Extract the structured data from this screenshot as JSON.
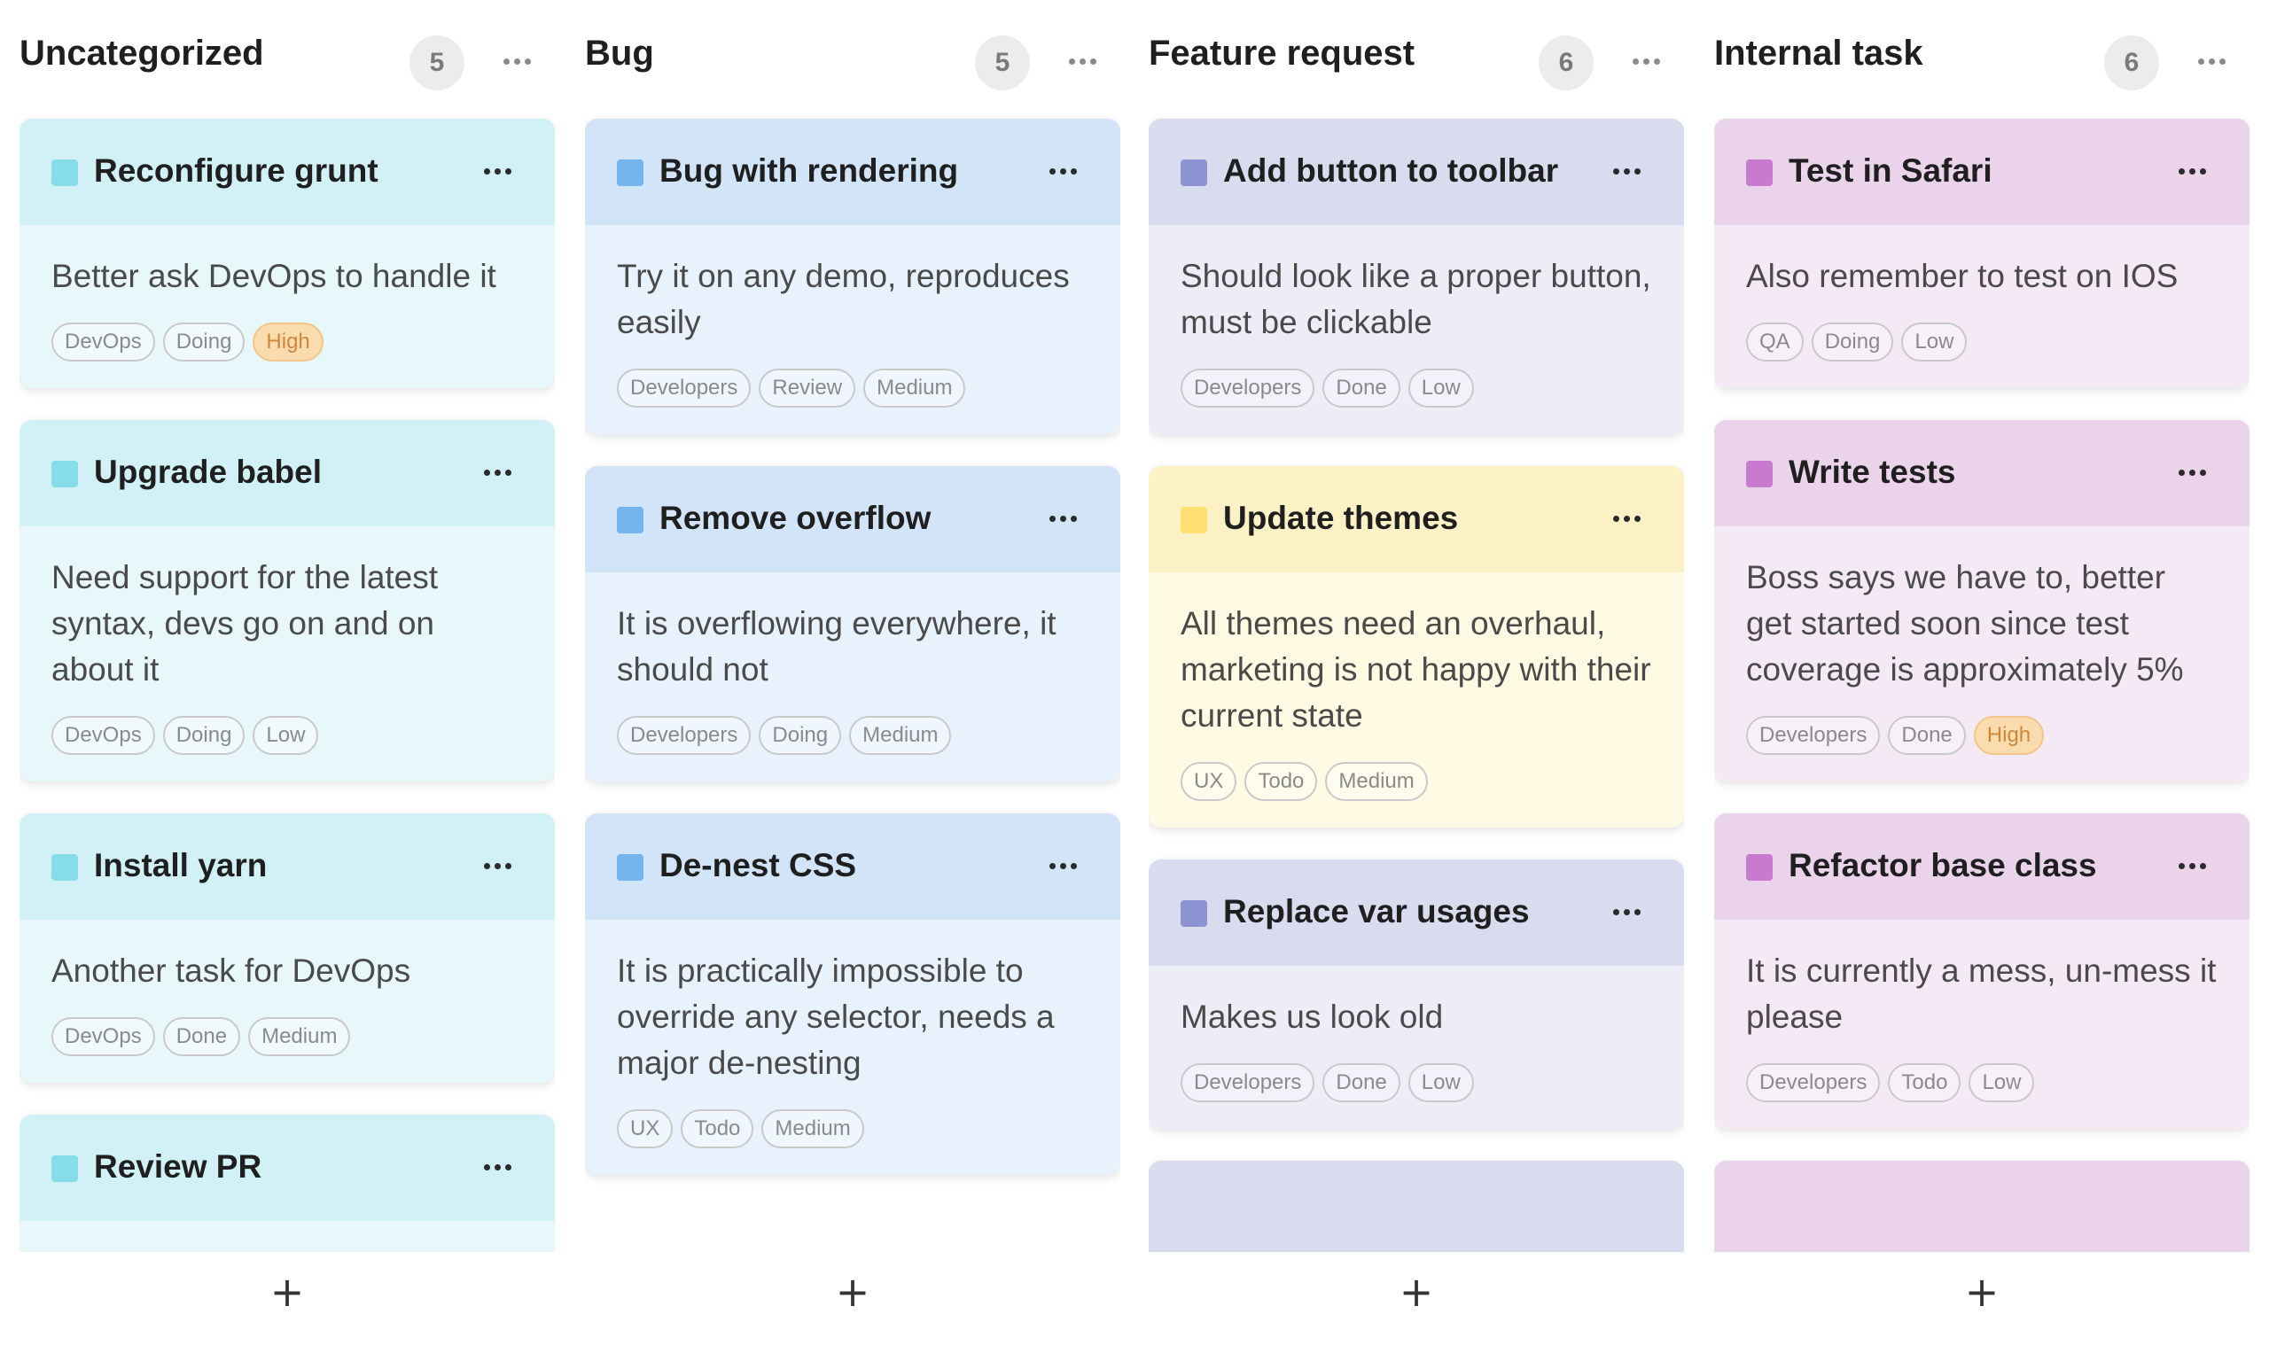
{
  "columns": [
    {
      "title": "Uncategorized",
      "count": "5",
      "header_color": "#d1f1f6",
      "body_color": "#e8f8fa",
      "swatch_color": "#86dde9",
      "cards": [
        {
          "title": "Reconfigure grunt",
          "description": "Better ask DevOps to handle it",
          "tags": [
            "DevOps",
            "Doing",
            "High"
          ]
        },
        {
          "title": "Upgrade babel",
          "description": "Need support for the latest syntax, devs go on and on about it",
          "tags": [
            "DevOps",
            "Doing",
            "Low"
          ]
        },
        {
          "title": "Install yarn",
          "description": "Another task for DevOps",
          "tags": [
            "DevOps",
            "Done",
            "Medium"
          ]
        },
        {
          "title": "Review PR",
          "description": "",
          "tags": []
        }
      ]
    },
    {
      "title": "Bug",
      "count": "5",
      "header_color": "#d2e5f8",
      "body_color": "#e8f2fc",
      "swatch_color": "#74b4ef",
      "cards": [
        {
          "title": "Bug with rendering",
          "description": "Try it on any demo, reproduces easily",
          "tags": [
            "Developers",
            "Review",
            "Medium"
          ]
        },
        {
          "title": "Remove overflow",
          "description": "It is overflowing everywhere, it should not",
          "tags": [
            "Developers",
            "Doing",
            "Medium"
          ]
        },
        {
          "title": "De-nest CSS",
          "description": "It is practically impossible to override any selector, needs a major de-nesting",
          "tags": [
            "UX",
            "Todo",
            "Medium"
          ]
        }
      ]
    },
    {
      "title": "Feature request",
      "count": "6",
      "header_color": "#d9dbee",
      "body_color": "#ecedf7",
      "swatch_color": "#8c93d3",
      "cards": [
        {
          "title": "Add button to toolbar",
          "description": "Should look like a proper button, must be clickable",
          "tags": [
            "Developers",
            "Done",
            "Low"
          ]
        },
        {
          "title": "Update themes",
          "description": "All themes need an overhaul, marketing is not happy with their current state",
          "tags": [
            "UX",
            "Todo",
            "Medium"
          ]
        },
        {
          "title": "Replace var usages",
          "description": "Makes us look old",
          "tags": [
            "Developers",
            "Done",
            "Low"
          ]
        },
        {
          "title": "",
          "description": "",
          "tags": []
        }
      ]
    },
    {
      "title": "Internal task",
      "count": "6",
      "header_color": "#ebd3ec",
      "body_color": "#f5e9f6",
      "swatch_color": "#c87ad0",
      "cards": [
        {
          "title": "Test in Safari",
          "description": "Also remember to test on IOS",
          "tags": [
            "QA",
            "Doing",
            "Low"
          ]
        },
        {
          "title": "Write tests",
          "description": "Boss says we have to, better get started soon since test coverage is approximately 5%",
          "tags": [
            "Developers",
            "Done",
            "High"
          ]
        },
        {
          "title": "Refactor base class",
          "description": "It is currently a mess, un-mess it please",
          "tags": [
            "Developers",
            "Todo",
            "Low"
          ]
        },
        {
          "title": "",
          "description": "",
          "tags": []
        }
      ]
    }
  ],
  "special_card": {
    "column": 2,
    "card": 1,
    "header_color": "#fdf2c6",
    "body_color": "#fefae3",
    "swatch_color": "#ffe070"
  },
  "add_button_label": "+",
  "colors": {
    "high_tag_bg": "#fbdcaf",
    "high_tag_text": "#d0873a"
  }
}
